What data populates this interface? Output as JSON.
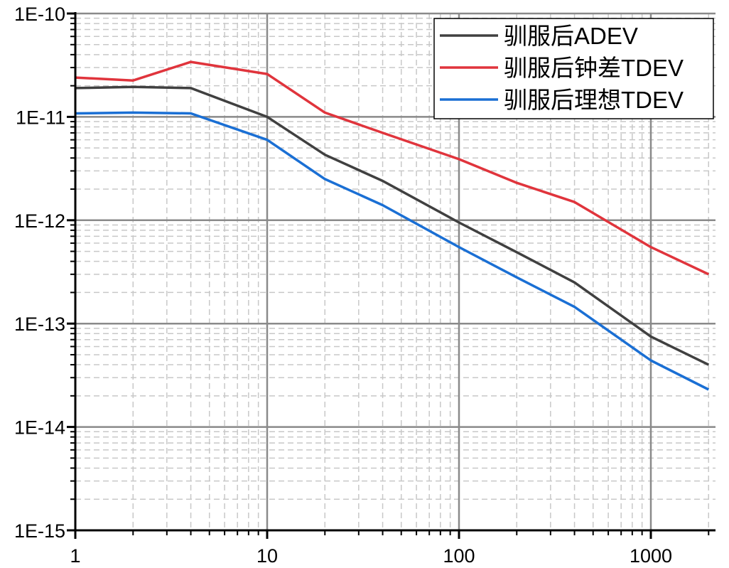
{
  "chart_data": {
    "type": "line",
    "title": "",
    "xlabel": "",
    "ylabel": "",
    "x_scale": "log",
    "y_scale": "log",
    "xlim": [
      1,
      2000
    ],
    "ylim": [
      1e-15,
      1e-10
    ],
    "grid": true,
    "legend_position": "top-right",
    "x_ticks": [
      {
        "value": 1,
        "label": "1"
      },
      {
        "value": 10,
        "label": "10"
      },
      {
        "value": 100,
        "label": "100"
      },
      {
        "value": 1000,
        "label": "1000"
      }
    ],
    "y_ticks": [
      {
        "value": 1e-15,
        "label": "1E-15"
      },
      {
        "value": 1e-14,
        "label": "1E-14"
      },
      {
        "value": 1e-13,
        "label": "1E-13"
      },
      {
        "value": 1e-12,
        "label": "1E-12"
      },
      {
        "value": 1e-11,
        "label": "1E-11"
      },
      {
        "value": 1e-10,
        "label": "1E-10"
      }
    ],
    "x": [
      1,
      2,
      4,
      10,
      20,
      40,
      100,
      200,
      400,
      1000,
      2000
    ],
    "series": [
      {
        "name": "驯服后ADEV",
        "color": "#404040",
        "values": [
          1.9e-11,
          1.95e-11,
          1.9e-11,
          1e-11,
          4.3e-12,
          2.4e-12,
          9.5e-13,
          4.9e-13,
          2.5e-13,
          7.5e-14,
          4e-14
        ]
      },
      {
        "name": "驯服后钟差TDEV",
        "color": "#e0343c",
        "values": [
          2.4e-11,
          2.25e-11,
          3.4e-11,
          2.6e-11,
          1.1e-11,
          7e-12,
          3.9e-12,
          2.3e-12,
          1.5e-12,
          5.5e-13,
          3e-13
        ]
      },
      {
        "name": "驯服后理想TDEV",
        "color": "#1a6fd4",
        "values": [
          1.08e-11,
          1.1e-11,
          1.08e-11,
          6e-12,
          2.5e-12,
          1.4e-12,
          5.5e-13,
          2.8e-13,
          1.45e-13,
          4.4e-14,
          2.3e-14
        ]
      }
    ]
  }
}
